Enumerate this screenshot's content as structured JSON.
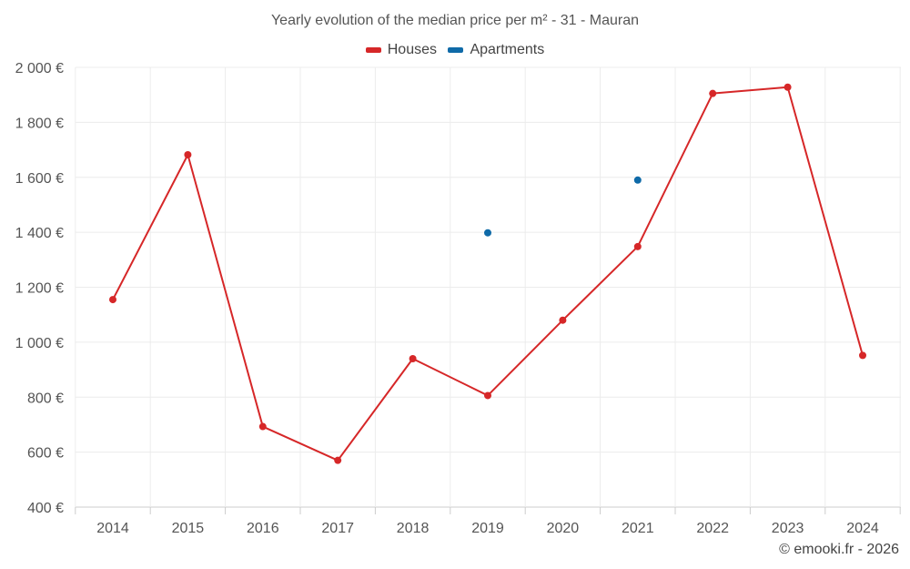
{
  "chart_data": {
    "type": "line",
    "title": "Yearly evolution of the median price per m² - 31 - Mauran",
    "categories": [
      "2014",
      "2015",
      "2016",
      "2017",
      "2018",
      "2019",
      "2020",
      "2021",
      "2022",
      "2023",
      "2024"
    ],
    "series": [
      {
        "name": "Houses",
        "color": "#d62728",
        "values": [
          1155,
          1682,
          693,
          570,
          940,
          806,
          1080,
          1348,
          1905,
          1928,
          952
        ]
      },
      {
        "name": "Apartments",
        "color": "#0f6aa8",
        "values": [
          null,
          null,
          null,
          null,
          null,
          1398,
          null,
          1590,
          null,
          null,
          null
        ]
      }
    ],
    "ylim": [
      400,
      2000
    ],
    "yticks": [
      400,
      600,
      800,
      1000,
      1200,
      1400,
      1600,
      1800,
      2000
    ],
    "ytick_labels": [
      "400 €",
      "600 €",
      "800 €",
      "1 000 €",
      "1 200 €",
      "1 400 €",
      "1 600 €",
      "1 800 €",
      "2 000 €"
    ],
    "xlabel": "",
    "ylabel": "",
    "grid": true,
    "legend_position": "top-center"
  },
  "legend": {
    "houses_label": "Houses",
    "apartments_label": "Apartments"
  },
  "credit": "© emooki.fr - 2026"
}
